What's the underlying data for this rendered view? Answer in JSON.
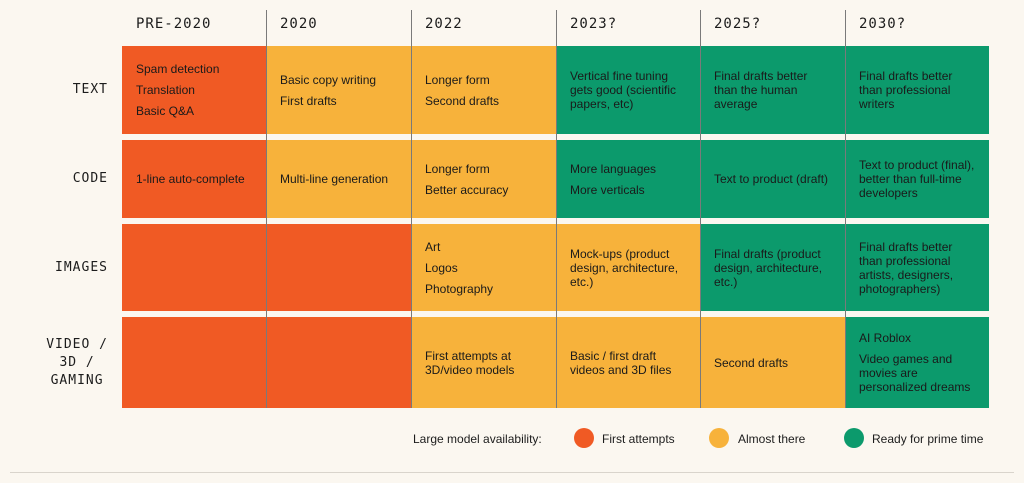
{
  "colors": {
    "first_attempts": "#f05a24",
    "almost_there": "#f7b23b",
    "prime_time": "#0c9a6c"
  },
  "columns": [
    "PRE-2020",
    "2020",
    "2022",
    "2023?",
    "2025?",
    "2030?"
  ],
  "rows": [
    {
      "label": "TEXT",
      "cells": [
        {
          "status": "first_attempts",
          "lines": [
            "Spam detection",
            "Translation",
            "Basic Q&A"
          ],
          "spaced": true
        },
        {
          "status": "almost_there",
          "lines": [
            "Basic copy writing",
            "First drafts"
          ],
          "spaced": true
        },
        {
          "status": "almost_there",
          "lines": [
            "Longer form",
            "Second drafts"
          ],
          "spaced": true
        },
        {
          "status": "prime_time",
          "lines": [
            "Vertical fine tuning",
            "gets good (scientific",
            "papers, etc)"
          ],
          "spaced": false
        },
        {
          "status": "prime_time",
          "lines": [
            "Final drafts better",
            "than the human",
            "average"
          ],
          "spaced": false
        },
        {
          "status": "prime_time",
          "lines": [
            "Final drafts better",
            "than professional",
            "writers"
          ],
          "spaced": false
        }
      ]
    },
    {
      "label": "CODE",
      "cells": [
        {
          "status": "first_attempts",
          "lines": [
            "1-line auto-complete"
          ],
          "spaced": false
        },
        {
          "status": "almost_there",
          "lines": [
            "Multi-line generation"
          ],
          "spaced": false
        },
        {
          "status": "almost_there",
          "lines": [
            "Longer form",
            "Better accuracy"
          ],
          "spaced": true
        },
        {
          "status": "prime_time",
          "lines": [
            "More languages",
            "More verticals"
          ],
          "spaced": true
        },
        {
          "status": "prime_time",
          "lines": [
            "Text to product (draft)"
          ],
          "spaced": false
        },
        {
          "status": "prime_time",
          "lines": [
            "Text to product (final),",
            "better than full-time",
            "developers"
          ],
          "spaced": false
        }
      ]
    },
    {
      "label": "IMAGES",
      "cells": [
        {
          "status": "first_attempts",
          "lines": [],
          "spaced": false
        },
        {
          "status": "first_attempts",
          "lines": [],
          "spaced": false
        },
        {
          "status": "almost_there",
          "lines": [
            "Art",
            "Logos",
            "Photography"
          ],
          "spaced": true
        },
        {
          "status": "almost_there",
          "lines": [
            "Mock-ups (product",
            "design, architecture,",
            "etc.)"
          ],
          "spaced": false
        },
        {
          "status": "prime_time",
          "lines": [
            "Final drafts (product",
            "design, architecture,",
            "etc.)"
          ],
          "spaced": false
        },
        {
          "status": "prime_time",
          "lines": [
            "Final drafts better",
            "than professional",
            "artists, designers,",
            "photographers)"
          ],
          "spaced": false
        }
      ]
    },
    {
      "label": "VIDEO /\n3D /\nGAMING",
      "cells": [
        {
          "status": "first_attempts",
          "lines": [],
          "spaced": false
        },
        {
          "status": "first_attempts",
          "lines": [],
          "spaced": false
        },
        {
          "status": "almost_there",
          "lines": [
            "First attempts at",
            "3D/video models"
          ],
          "spaced": false
        },
        {
          "status": "almost_there",
          "lines": [
            "Basic / first draft",
            "videos and 3D files"
          ],
          "spaced": false
        },
        {
          "status": "almost_there",
          "lines": [
            "Second drafts"
          ],
          "spaced": false
        },
        {
          "status": "prime_time",
          "groups": [
            [
              "AI Roblox"
            ],
            [
              "Video games and",
              "movies are",
              "personalized dreams"
            ]
          ]
        }
      ]
    }
  ],
  "legend": {
    "title": "Large model availability:",
    "items": [
      {
        "status": "first_attempts",
        "label": "First attempts"
      },
      {
        "status": "almost_there",
        "label": "Almost there"
      },
      {
        "status": "prime_time",
        "label": "Ready for prime time"
      }
    ]
  }
}
